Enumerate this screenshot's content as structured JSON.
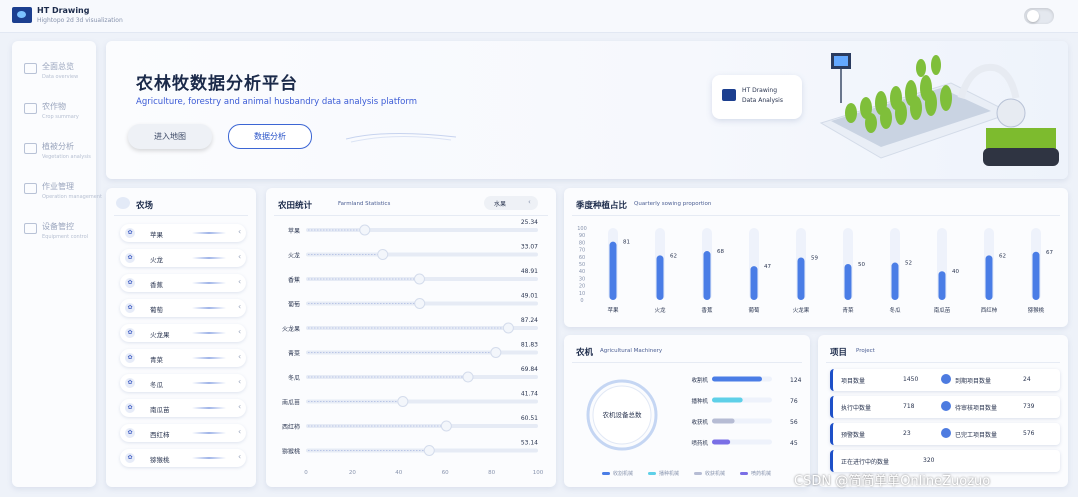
{
  "app": {
    "title": "HT Drawing",
    "subtitle": "Hightopo 2d 3d visualization"
  },
  "sidebar": {
    "items": [
      {
        "label": "全面总览",
        "sub": "Data overview",
        "icon": "dashboard-icon"
      },
      {
        "label": "农作物",
        "sub": "Crop summary",
        "icon": "leaf-icon"
      },
      {
        "label": "植被分析",
        "sub": "Vegetation analysis",
        "icon": "plant-icon"
      },
      {
        "label": "作业管理",
        "sub": "Operation management",
        "icon": "calendar-icon"
      },
      {
        "label": "设备管控",
        "sub": "Equipment control",
        "icon": "tractor-icon"
      }
    ]
  },
  "hero": {
    "title": "农林牧数据分析平台",
    "subtitle": "Agriculture, forestry and animal husbandry data analysis platform",
    "enter_label": "进入地图",
    "analysis_label": "数据分析",
    "card_line1": "HT Drawing",
    "card_line2": "Data Analysis"
  },
  "crops": {
    "title": "农场",
    "items": [
      "苹果",
      "火龙",
      "香蕉",
      "葡萄",
      "火龙果",
      "青菜",
      "冬瓜",
      "南瓜苗",
      "西红柿",
      "猕猴桃"
    ]
  },
  "farmland": {
    "title": "农田统计",
    "title_en": "Farmland Statistics",
    "select_value": "水果",
    "chart_data": {
      "type": "bar",
      "orientation": "horizontal",
      "categories": [
        "苹果",
        "火龙",
        "香蕉",
        "葡萄",
        "火龙果",
        "青菜",
        "冬瓜",
        "南瓜苗",
        "西红柿",
        "猕猴桃"
      ],
      "values": [
        25.34,
        33.07,
        48.91,
        49.01,
        87.24,
        81.83,
        69.84,
        41.74,
        60.51,
        53.14
      ],
      "xticks": [
        "0",
        "20",
        "40",
        "60",
        "80",
        "100"
      ],
      "xlim": [
        0,
        100
      ]
    }
  },
  "season": {
    "title": "季度种植占比",
    "title_en": "Quarterly sowing proportion",
    "chart_data": {
      "type": "bar",
      "categories": [
        "苹果",
        "火龙",
        "香蕉",
        "葡萄",
        "火龙果",
        "青菜",
        "冬瓜",
        "南瓜苗",
        "西红柿",
        "猕猴桃"
      ],
      "values": [
        81,
        62,
        68,
        47,
        59,
        50,
        52,
        40,
        62,
        67
      ],
      "ylim": [
        0,
        100
      ],
      "yticks": [
        "100",
        "90",
        "80",
        "70",
        "60",
        "50",
        "40",
        "30",
        "20",
        "10",
        "0"
      ]
    }
  },
  "machinery": {
    "title": "农机",
    "title_en": "Agricultural Machinery",
    "ring_label": "农机设备总数",
    "chart_data": {
      "type": "bar",
      "orientation": "horizontal",
      "categories": [
        "收割机",
        "播种机",
        "收获机",
        "喷药机"
      ],
      "values": [
        124,
        76,
        56,
        45
      ],
      "colors": [
        "#4a7de6",
        "#5ed0e8",
        "#b6bcd4",
        "#7a6fe6"
      ],
      "legend": [
        "收割机械",
        "播种机械",
        "收获机械",
        "喷药机械"
      ]
    }
  },
  "project": {
    "title": "项目",
    "title_en": "Project",
    "rows": [
      {
        "l1": "项目数量",
        "v1": "1450",
        "l2": "到期项目数量",
        "v2": "24"
      },
      {
        "l1": "执行中数量",
        "v1": "718",
        "l2": "待审核项目数量",
        "v2": "739"
      },
      {
        "l1": "预警数量",
        "v1": "23",
        "l2": "已完工项目数量",
        "v2": "576"
      },
      {
        "l1": "正在进行中的数量",
        "v1": "320",
        "l2": "",
        "v2": ""
      }
    ]
  },
  "watermark": "CSDN @简简单单OnlineZuozuo"
}
